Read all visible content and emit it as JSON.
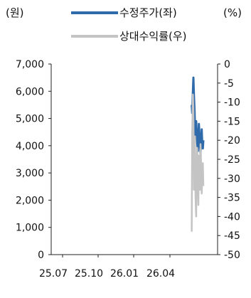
{
  "header": {
    "left_unit": "(원)",
    "right_unit": "(%)"
  },
  "legend": [
    {
      "label": "수정주가(좌)",
      "color": "#2f6bab"
    },
    {
      "label": "상대수익률(우)",
      "color": "#c4c4c4"
    }
  ],
  "chart_data": {
    "type": "line",
    "legend_position": "top",
    "grid": false,
    "x_ticks": [
      "25.07",
      "25.10",
      "26.01",
      "26.04"
    ],
    "y_left": {
      "label": "(원)",
      "ylim": [
        0,
        7000
      ],
      "ticks": [
        "0",
        "1,000",
        "2,000",
        "3,000",
        "4,000",
        "5,000",
        "6,000",
        "7,000"
      ]
    },
    "y_right": {
      "label": "(%)",
      "ylim": [
        -50,
        0
      ],
      "ticks": [
        "-50",
        "-45",
        "-40",
        "-35",
        "-30",
        "-25",
        "-20",
        "-15",
        "-10",
        "-5",
        "0"
      ]
    },
    "series": [
      {
        "name": "수정주가(좌)",
        "axis": "left",
        "color": "#2f6bab",
        "x": [
          0.93,
          0.933,
          0.937,
          0.94,
          0.943,
          0.947,
          0.95,
          0.953,
          0.957,
          0.96,
          0.963,
          0.967,
          0.97,
          0.973,
          0.977,
          0.98,
          0.983,
          0.987,
          0.99,
          0.993,
          0.997,
          1.0
        ],
        "values": [
          5500,
          5200,
          6000,
          6500,
          5900,
          5300,
          4600,
          4300,
          4900,
          4500,
          4100,
          3800,
          4300,
          4800,
          4400,
          4000,
          3700,
          4200,
          4600,
          4100,
          3900,
          4200
        ]
      },
      {
        "name": "상대수익률(우)",
        "axis": "right",
        "color": "#c4c4c4",
        "x": [
          0.93,
          0.933,
          0.937,
          0.94,
          0.943,
          0.947,
          0.95,
          0.953,
          0.957,
          0.96,
          0.963,
          0.967,
          0.97,
          0.973,
          0.977,
          0.98,
          0.983,
          0.987,
          0.99,
          0.993,
          0.997,
          1.0
        ],
        "values": [
          -44,
          -18,
          -8,
          -12,
          -33,
          -25,
          -19,
          -35,
          -40,
          -28,
          -22,
          -31,
          -37,
          -24,
          -29,
          -33,
          -21,
          -27,
          -34,
          -30,
          -26,
          -32
        ]
      }
    ]
  }
}
